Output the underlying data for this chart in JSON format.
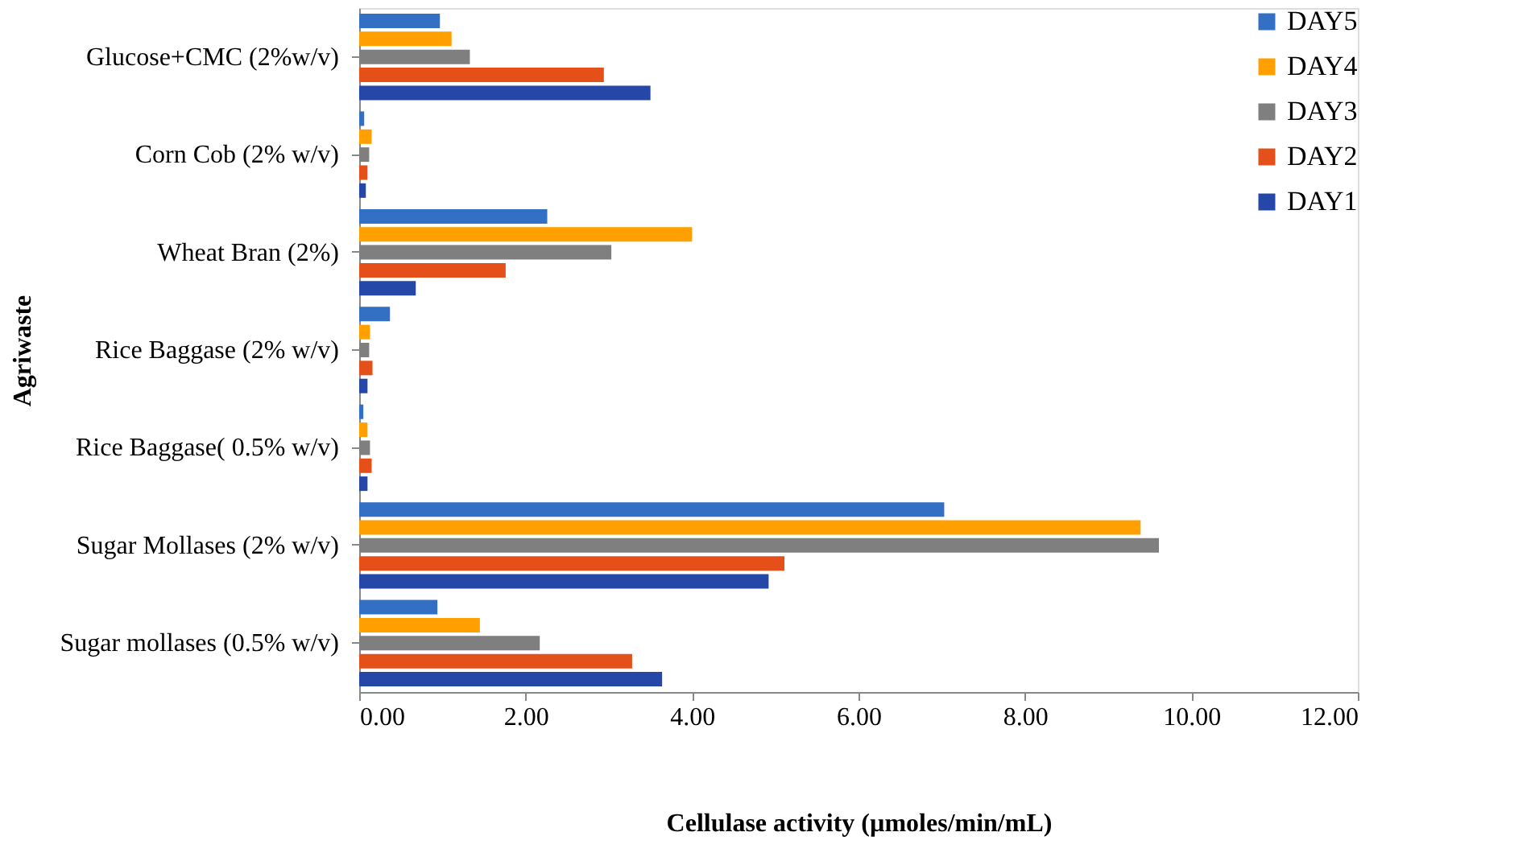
{
  "chart_data": {
    "type": "bar",
    "orientation": "horizontal",
    "categories": [
      "Glucose+CMC (2%w/v)",
      "Corn Cob (2% w/v)",
      "Wheat Bran (2%)",
      "Rice Baggase (2% w/v)",
      "Rice Baggase( 0.5% w/v)",
      "Sugar Mollases (2% w/v)",
      "Sugar mollases (0.5% w/v)"
    ],
    "series": [
      {
        "name": "DAY5",
        "color": "#3370c4",
        "values": [
          0.97,
          0.06,
          2.26,
          0.37,
          0.05,
          7.03,
          0.94
        ]
      },
      {
        "name": "DAY4",
        "color": "#ffa000",
        "values": [
          1.11,
          0.15,
          4.0,
          0.13,
          0.1,
          9.39,
          1.45
        ]
      },
      {
        "name": "DAY3",
        "color": "#7f7f7f",
        "values": [
          1.33,
          0.12,
          3.03,
          0.12,
          0.13,
          9.61,
          2.17
        ]
      },
      {
        "name": "DAY2",
        "color": "#e5501a",
        "values": [
          2.94,
          0.1,
          1.76,
          0.16,
          0.15,
          5.11,
          3.28
        ]
      },
      {
        "name": "DAY1",
        "color": "#2447a8",
        "values": [
          3.5,
          0.08,
          0.68,
          0.1,
          0.1,
          4.92,
          3.64
        ]
      }
    ],
    "xlabel": "Cellulase activity (µmoles/min/mL)",
    "ylabel": "Agriwaste",
    "xlim": [
      0,
      12
    ],
    "xticks": [
      {
        "value": 0,
        "label": "0.00"
      },
      {
        "value": 2,
        "label": "2.00"
      },
      {
        "value": 4,
        "label": "4.00"
      },
      {
        "value": 6,
        "label": "6.00"
      },
      {
        "value": 8,
        "label": "8.00"
      },
      {
        "value": 10,
        "label": "10.00"
      },
      {
        "value": 12,
        "label": "12.00"
      }
    ],
    "grid": false,
    "legend": "top right"
  }
}
